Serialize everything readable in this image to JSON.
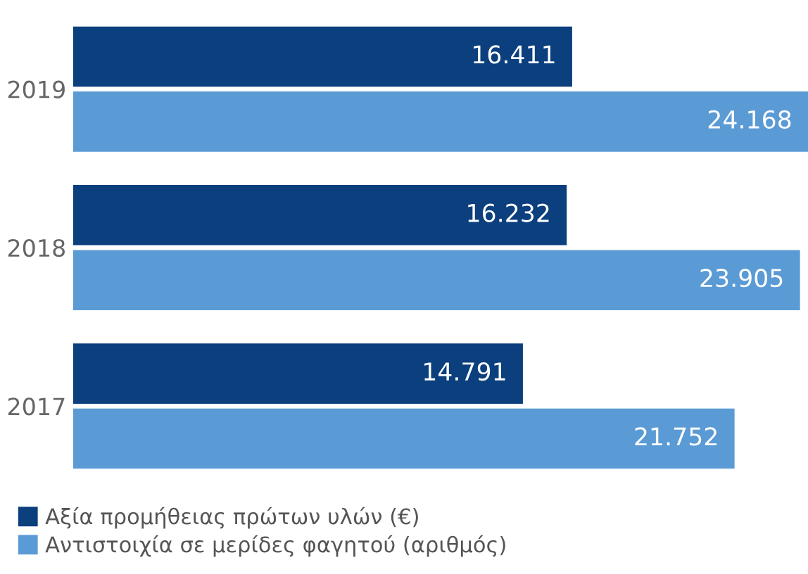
{
  "chart_data": {
    "type": "bar",
    "orientation": "horizontal",
    "categories": [
      "2019",
      "2018",
      "2017"
    ],
    "series": [
      {
        "name": "Αξία προμήθειας πρώτων υλών (€)",
        "color": "#0b3f7e",
        "values": [
          16411,
          16232,
          14791
        ],
        "value_labels": [
          "16.411",
          "16.232",
          "14.791"
        ]
      },
      {
        "name": "Αντιστοιχία σε μερίδες φαγητού (αριθμός)",
        "color": "#5b9bd5",
        "values": [
          24168,
          23905,
          21752
        ],
        "value_labels": [
          "24.168",
          "23.905",
          "21.752"
        ]
      }
    ],
    "tick_labels": "y",
    "grid": false,
    "legend": "bottom"
  }
}
